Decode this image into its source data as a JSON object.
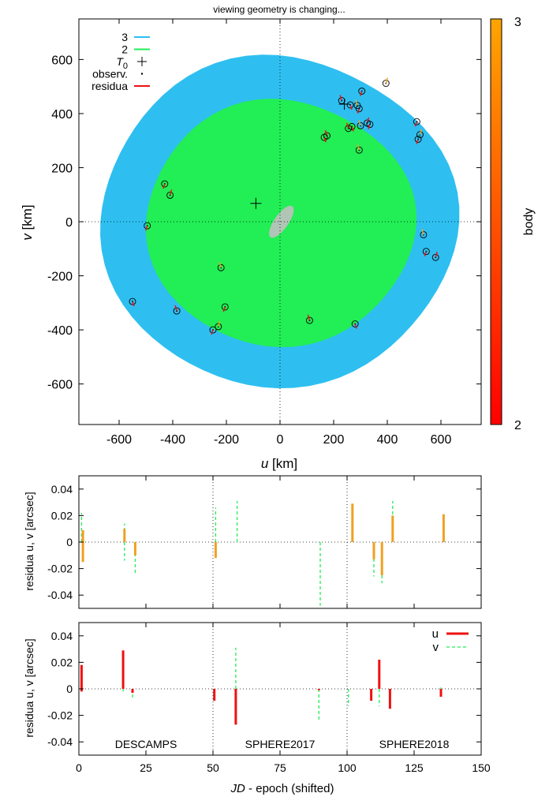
{
  "chart_data": [
    {
      "type": "scatter",
      "title": "viewing geometry is changing...",
      "xlabel_italic": "u",
      "xlabel_rest": " [km]",
      "ylabel_italic": "v",
      "ylabel_rest": " [km]",
      "xlim": [
        -750,
        750
      ],
      "ylim": [
        -750,
        750
      ],
      "xticks": [
        -600,
        -400,
        -200,
        0,
        200,
        400,
        600
      ],
      "yticks": [
        -600,
        -400,
        -200,
        0,
        200,
        400,
        600
      ],
      "xticklabels": [
        "-600",
        "-400",
        "-200",
        "0",
        "200",
        "400",
        "600"
      ],
      "yticklabels": [
        "-600",
        "-400",
        "-200",
        "0",
        "200",
        "400",
        "600"
      ],
      "colors": {
        "orbit3": "#2ebff0",
        "orbit2": "#22ee55",
        "t0": "#000000",
        "observ": "#000000",
        "residua": "#ee1111",
        "body": "#c0c0c0"
      },
      "legend": {
        "placement": "top-left",
        "items": [
          {
            "label": "3",
            "kind": "line",
            "color": "#2ebff0"
          },
          {
            "label": "2",
            "kind": "line",
            "color": "#22ee55"
          },
          {
            "label": "T",
            "sub": "0",
            "kind": "plus",
            "color": "#000000"
          },
          {
            "label": "observ.",
            "kind": "dot",
            "color": "#000000"
          },
          {
            "label": "residua",
            "kind": "line",
            "color": "#ee1111"
          }
        ]
      },
      "orbit3_radius": {
        "x": [
          -670,
          655
        ],
        "y": [
          -610,
          610
        ]
      },
      "orbit2_radius": {
        "x": [
          -500,
          500
        ],
        "y": [
          -460,
          450
        ]
      },
      "t0_markers": [
        [
          -90,
          68
        ],
        [
          240,
          435
        ]
      ],
      "observations": [
        [
          395,
          512
        ],
        [
          305,
          483
        ],
        [
          230,
          448
        ],
        [
          262,
          432
        ],
        [
          288,
          430
        ],
        [
          295,
          418
        ],
        [
          325,
          365
        ],
        [
          335,
          360
        ],
        [
          300,
          355
        ],
        [
          268,
          352
        ],
        [
          255,
          345
        ],
        [
          510,
          370
        ],
        [
          522,
          322
        ],
        [
          515,
          305
        ],
        [
          175,
          318
        ],
        [
          165,
          312
        ],
        [
          295,
          265
        ],
        [
          -430,
          140
        ],
        [
          -410,
          98
        ],
        [
          -495,
          -15
        ],
        [
          -220,
          -170
        ],
        [
          -550,
          -295
        ],
        [
          -385,
          -330
        ],
        [
          -205,
          -315
        ],
        [
          -230,
          -388
        ],
        [
          -250,
          -400
        ],
        [
          110,
          -365
        ],
        [
          280,
          -378
        ],
        [
          535,
          -48
        ],
        [
          545,
          -110
        ],
        [
          580,
          -132
        ]
      ],
      "colorbar": {
        "label": "body",
        "min_label": "2",
        "max_label": "3",
        "colors": [
          "#ff0000",
          "#ffa500"
        ]
      }
    },
    {
      "type": "bar",
      "ylabel": "residua u, v [arcsec]",
      "xlim": [
        0,
        150
      ],
      "ylim": [
        -0.05,
        0.05
      ],
      "yticks": [
        -0.04,
        -0.02,
        0,
        0.02,
        0.04
      ],
      "yticklabels": [
        "-0.04",
        "-0.02",
        "0",
        "0.02",
        "0.04"
      ],
      "separators": [
        50,
        100
      ],
      "u_color": "#f0a020",
      "v_color": "#22ee55",
      "series": [
        {
          "name": "u",
          "points": [
            [
              1.5,
              -0.015
            ],
            [
              1.5,
              0.009
            ],
            [
              17,
              0.01
            ],
            [
              21,
              -0.01
            ],
            [
              51,
              -0.012
            ],
            [
              102,
              0.029
            ],
            [
              110,
              -0.013
            ],
            [
              113,
              -0.025
            ],
            [
              117,
              0.02
            ],
            [
              136,
              0.021
            ]
          ]
        },
        {
          "name": "v",
          "points": [
            [
              1,
              0.022
            ],
            [
              17,
              0.014
            ],
            [
              17,
              -0.014
            ],
            [
              21,
              -0.025
            ],
            [
              51,
              0.026
            ],
            [
              59,
              0.031
            ],
            [
              90,
              -0.048
            ],
            [
              110,
              -0.026
            ],
            [
              113,
              -0.031
            ],
            [
              117,
              0.031
            ]
          ]
        }
      ]
    },
    {
      "type": "bar",
      "ylabel": "residua u, v [arcsec]",
      "xlabel_italic": "JD",
      "xlabel_rest": " - epoch (shifted)",
      "xlim": [
        0,
        150
      ],
      "ylim": [
        -0.05,
        0.05
      ],
      "xticks": [
        0,
        25,
        50,
        75,
        100,
        125,
        150
      ],
      "xticklabels": [
        "0",
        "25",
        "50",
        "75",
        "100",
        "125",
        "150"
      ],
      "yticks": [
        -0.04,
        -0.02,
        0,
        0.02,
        0.04
      ],
      "yticklabels": [
        "-0.04",
        "-0.02",
        "0",
        "0.02",
        "0.04"
      ],
      "separators": [
        50,
        100
      ],
      "annotations": [
        "DESCAMPS",
        "SPHERE2017",
        "SPHERE2018"
      ],
      "annotation_x": [
        25,
        75,
        125
      ],
      "legend": {
        "placement": "top-right",
        "items": [
          {
            "label": "u",
            "style": "solid",
            "color": "#ee1111"
          },
          {
            "label": "v",
            "style": "dashed",
            "color": "#22ee55"
          }
        ]
      },
      "series": [
        {
          "name": "u",
          "points": [
            [
              1,
              0.018
            ],
            [
              1,
              -0.002
            ],
            [
              16.5,
              0.029
            ],
            [
              20,
              -0.003
            ],
            [
              50.5,
              -0.009
            ],
            [
              58.5,
              -0.027
            ],
            [
              89.5,
              -0.001
            ],
            [
              109,
              -0.009
            ],
            [
              112,
              0.022
            ],
            [
              116,
              -0.015
            ],
            [
              135,
              -0.006
            ]
          ]
        },
        {
          "name": "v",
          "points": [
            [
              1,
              0.003
            ],
            [
              16.5,
              -0.002
            ],
            [
              20,
              -0.008
            ],
            [
              58.5,
              0.031
            ],
            [
              89.5,
              -0.025
            ],
            [
              100.5,
              -0.013
            ],
            [
              112,
              -0.013
            ],
            [
              135,
              0.001
            ]
          ]
        }
      ]
    }
  ]
}
